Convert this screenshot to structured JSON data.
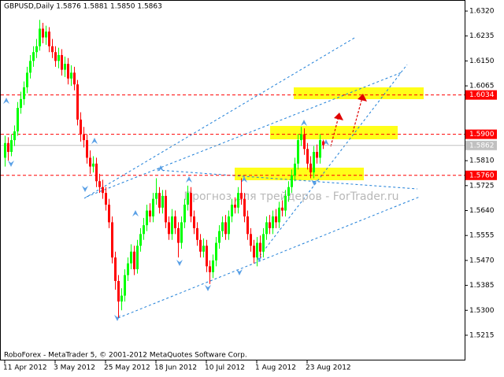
{
  "chart_data": {
    "type": "candlestick",
    "title": "GBPUSD,Daily  1.5876 1.5881 1.5850 1.5863",
    "footer": "RoboForex - MetaTrader 5, © 2001-2012 MetaQuotes Software Corp.",
    "watermark": "Прогноз для трейдеров - ForTrader.ru",
    "categories": [
      "11 Apr 2012",
      null,
      null,
      null,
      null,
      null,
      null,
      null,
      null,
      null,
      null,
      null,
      null,
      null,
      null,
      null,
      "3 May 2012",
      null,
      null,
      null,
      null,
      null,
      null,
      null,
      null,
      null,
      null,
      null,
      null,
      null,
      null,
      null,
      "25 May 2012",
      null,
      null,
      null,
      null,
      null,
      null,
      null,
      null,
      null,
      null,
      null,
      null,
      null,
      null,
      null,
      "18 Jun 2012",
      null,
      null,
      null,
      null,
      null,
      null,
      null,
      null,
      null,
      null,
      null,
      null,
      null,
      null,
      null,
      "10 Jul 2012",
      null,
      null,
      null,
      null,
      null,
      null,
      null,
      null,
      null,
      null,
      null,
      null,
      null,
      null,
      null,
      "1 Aug 2012",
      null,
      null,
      null,
      null,
      null,
      null,
      null,
      null,
      null,
      null,
      null,
      null,
      null,
      null,
      null,
      "23 Aug 2012",
      null,
      null,
      null,
      null,
      null
    ],
    "open": [
      1.582,
      1.587,
      1.584,
      1.588,
      1.591,
      1.599,
      1.602,
      1.606,
      1.611,
      1.615,
      1.618,
      1.62,
      1.626,
      1.623,
      1.625,
      1.62,
      1.618,
      1.615,
      1.617,
      1.612,
      1.614,
      1.609,
      1.611,
      1.607,
      1.595,
      1.59,
      1.588,
      1.582,
      1.579,
      1.58,
      1.574,
      1.572,
      1.57,
      1.566,
      1.56,
      1.548,
      1.54,
      1.533,
      1.535,
      1.542,
      1.546,
      1.55,
      1.544,
      1.552,
      1.556,
      1.559,
      1.564,
      1.562,
      1.568,
      1.57,
      1.565,
      1.569,
      1.56,
      1.556,
      1.562,
      1.558,
      1.553,
      1.56,
      1.566,
      1.57,
      1.562,
      1.558,
      1.554,
      1.55,
      1.552,
      1.545,
      1.543,
      1.547,
      1.553,
      1.557,
      1.56,
      1.556,
      1.562,
      1.566,
      1.565,
      1.57,
      1.568,
      1.562,
      1.556,
      1.552,
      1.548,
      1.553,
      1.55,
      1.556,
      1.56,
      1.558,
      1.562,
      1.56,
      1.565,
      1.564,
      1.569,
      1.572,
      1.576,
      1.58,
      1.588,
      1.59,
      1.585,
      1.58,
      1.577,
      1.584,
      1.582,
      1.5876
    ],
    "high": [
      1.5895,
      1.589,
      1.59,
      1.593,
      1.601,
      1.6045,
      1.608,
      1.613,
      1.617,
      1.62,
      1.6225,
      1.629,
      1.628,
      1.627,
      1.6265,
      1.6225,
      1.62,
      1.6195,
      1.619,
      1.6165,
      1.616,
      1.6135,
      1.613,
      1.6085,
      1.5975,
      1.5925,
      1.59,
      1.5845,
      1.5825,
      1.582,
      1.5765,
      1.5745,
      1.572,
      1.568,
      1.562,
      1.55,
      1.542,
      1.5375,
      1.544,
      1.548,
      1.5525,
      1.552,
      1.554,
      1.558,
      1.5615,
      1.566,
      1.5665,
      1.57,
      1.575,
      1.572,
      1.571,
      1.571,
      1.562,
      1.5645,
      1.564,
      1.56,
      1.562,
      1.568,
      1.5725,
      1.572,
      1.564,
      1.56,
      1.556,
      1.5545,
      1.554,
      1.547,
      1.549,
      1.555,
      1.559,
      1.562,
      1.5625,
      1.564,
      1.568,
      1.5685,
      1.572,
      1.575,
      1.57,
      1.564,
      1.558,
      1.554,
      1.555,
      1.5555,
      1.558,
      1.562,
      1.5625,
      1.564,
      1.5645,
      1.567,
      1.5675,
      1.571,
      1.574,
      1.578,
      1.582,
      1.59,
      1.5925,
      1.592,
      1.587,
      1.5825,
      1.586,
      1.5865,
      1.59,
      1.5881
    ],
    "low": [
      1.579,
      1.581,
      1.5825,
      1.586,
      1.5895,
      1.597,
      1.6,
      1.604,
      1.609,
      1.613,
      1.616,
      1.6185,
      1.621,
      1.6205,
      1.618,
      1.616,
      1.613,
      1.6125,
      1.61,
      1.6095,
      1.607,
      1.6065,
      1.605,
      1.593,
      1.5875,
      1.5855,
      1.58,
      1.5765,
      1.577,
      1.572,
      1.57,
      1.568,
      1.564,
      1.558,
      1.546,
      1.537,
      1.5275,
      1.53,
      1.533,
      1.54,
      1.544,
      1.542,
      1.5425,
      1.55,
      1.554,
      1.557,
      1.56,
      1.56,
      1.566,
      1.563,
      1.563,
      1.558,
      1.554,
      1.554,
      1.556,
      1.548,
      1.551,
      1.558,
      1.564,
      1.56,
      1.556,
      1.552,
      1.548,
      1.548,
      1.543,
      1.539,
      1.541,
      1.545,
      1.551,
      1.555,
      1.554,
      1.554,
      1.56,
      1.563,
      1.563,
      1.566,
      1.56,
      1.554,
      1.55,
      1.546,
      1.545,
      1.548,
      1.548,
      1.554,
      1.556,
      1.556,
      1.558,
      1.558,
      1.562,
      1.562,
      1.567,
      1.57,
      1.574,
      1.578,
      1.586,
      1.583,
      1.578,
      1.575,
      1.575,
      1.58,
      1.58,
      1.585
    ],
    "close": [
      1.587,
      1.584,
      1.588,
      1.591,
      1.599,
      1.602,
      1.606,
      1.611,
      1.615,
      1.618,
      1.62,
      1.626,
      1.623,
      1.625,
      1.62,
      1.618,
      1.615,
      1.617,
      1.612,
      1.614,
      1.609,
      1.611,
      1.607,
      1.595,
      1.59,
      1.588,
      1.582,
      1.579,
      1.58,
      1.574,
      1.572,
      1.57,
      1.566,
      1.56,
      1.548,
      1.54,
      1.533,
      1.535,
      1.542,
      1.546,
      1.55,
      1.544,
      1.552,
      1.556,
      1.559,
      1.564,
      1.562,
      1.568,
      1.57,
      1.565,
      1.569,
      1.56,
      1.556,
      1.562,
      1.558,
      1.553,
      1.56,
      1.566,
      1.57,
      1.562,
      1.558,
      1.554,
      1.55,
      1.552,
      1.545,
      1.543,
      1.547,
      1.553,
      1.557,
      1.56,
      1.556,
      1.562,
      1.566,
      1.565,
      1.57,
      1.568,
      1.562,
      1.556,
      1.552,
      1.548,
      1.553,
      1.55,
      1.556,
      1.56,
      1.558,
      1.562,
      1.56,
      1.565,
      1.564,
      1.569,
      1.572,
      1.576,
      1.58,
      1.588,
      1.59,
      1.585,
      1.58,
      1.577,
      1.584,
      1.582,
      1.588,
      1.5863
    ],
    "up_color": "#00ff00",
    "down_color": "#ff0000",
    "ylim": [
      1.5129,
      1.6355
    ],
    "yticks": [
      {
        "value": 1.632,
        "label": "1.6320"
      },
      1.6235,
      {
        "value": 1.615,
        "label": "1.6150"
      },
      1.6065,
      {
        "value": 1.581,
        "label": "1.5810"
      },
      1.5725,
      {
        "value": 1.564,
        "label": "1.5640"
      },
      1.5555,
      {
        "value": 1.547,
        "label": "1.5470"
      },
      1.5385,
      {
        "value": 1.53,
        "label": "1.5300"
      },
      1.5215
    ],
    "levels": [
      1.6034,
      {
        "value": 1.59,
        "label": "1.5900"
      },
      {
        "value": 1.576,
        "label": "1.5760"
      }
    ],
    "level_color": "#ff0000",
    "bid": 1.5862,
    "grid": false
  }
}
